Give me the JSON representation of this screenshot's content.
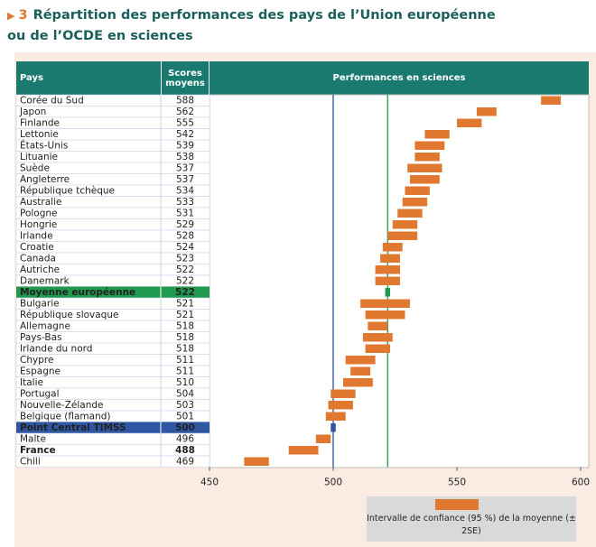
{
  "chart_data": {
    "type": "interval",
    "figure_number": "3",
    "title": "Répartition des performances des pays de l’Union européenne ou de l’OCDE en sciences",
    "columns": [
      "Pays",
      "Scores moyens",
      "Performances en sciences"
    ],
    "categories": [
      "Corée du Sud",
      "Japon",
      "Finlande",
      "Lettonie",
      "États-Unis",
      "Lituanie",
      "Suède",
      "Angleterre",
      "République tchèque",
      "Australie",
      "Pologne",
      "Hongrie",
      "Irlande",
      "Croatie",
      "Canada",
      "Autriche",
      "Danemark",
      "Moyenne européenne",
      "Bulgarie",
      "République slovaque",
      "Allemagne",
      "Pays-Bas",
      "Irlande du nord",
      "Chypre",
      "Espagne",
      "Italie",
      "Portugal",
      "Nouvelle-Zélande",
      "Belgique (flamand)",
      "Point Central TIMSS",
      "Malte",
      "France",
      "Chili"
    ],
    "values": [
      588,
      562,
      555,
      542,
      539,
      538,
      537,
      537,
      534,
      533,
      531,
      529,
      528,
      524,
      523,
      522,
      522,
      522,
      521,
      521,
      518,
      518,
      518,
      511,
      511,
      510,
      504,
      503,
      501,
      500,
      496,
      488,
      469
    ],
    "errors": [
      4,
      4,
      5,
      5,
      6,
      5,
      7,
      6,
      5,
      5,
      5,
      5,
      6,
      4,
      4,
      5,
      5,
      1,
      10,
      8,
      4,
      6,
      5,
      6,
      4,
      6,
      5,
      5,
      4,
      1,
      3,
      6,
      5
    ],
    "color": "#e0782f",
    "highlights": {
      "17": "#1f9a4f",
      "29": "#2f56a3"
    },
    "bold": [
      31
    ],
    "reference_lines": [
      {
        "value": 500,
        "color": "#2f4d8f"
      },
      {
        "value": 522,
        "color": "#1f9a4f"
      }
    ],
    "xlim": [
      450,
      600
    ],
    "xticks": [
      450,
      500,
      550,
      600
    ],
    "legend_label": "Intervalle de confiance (95 %) de la moyenne (± 2SE)"
  }
}
